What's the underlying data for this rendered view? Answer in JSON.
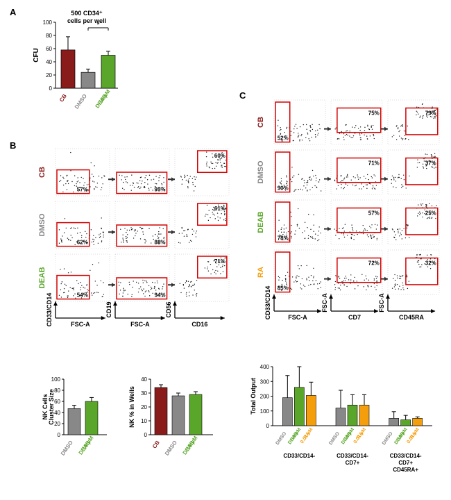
{
  "colors": {
    "cb": "#8a1b1b",
    "dmso": "#888888",
    "deab": "#5aa62a",
    "ra": "#f59e0b",
    "gate": "#d40000",
    "arrow_dark": "#333333",
    "dot": "#1a1a1a",
    "grid": "#e6e6e6"
  },
  "panelA": {
    "title": "500 CD34⁺\ncells per well",
    "ylabel": "CFU",
    "ylim": [
      0,
      100
    ],
    "ytick_step": 20,
    "bars": [
      {
        "label": "CB",
        "value": 58,
        "err": 20,
        "color": "#8a1b1b"
      },
      {
        "label": "DMSO",
        "value": 24,
        "err": 5,
        "color": "#888888"
      },
      {
        "label": "DEAB\n10 µM",
        "value": 50,
        "err": 6,
        "color": "#5aa62a"
      }
    ],
    "sig": {
      "from": 1,
      "to": 2,
      "label": "*"
    }
  },
  "panelB": {
    "rows": [
      {
        "name": "CB",
        "color": "#8a1b1b",
        "gates": [
          {
            "pct": "57%",
            "pos": "bl"
          },
          {
            "pct": "95%",
            "pos": "bm"
          },
          {
            "pct": "60%",
            "pos": "tr"
          }
        ]
      },
      {
        "name": "DMSO",
        "color": "#888888",
        "gates": [
          {
            "pct": "62%",
            "pos": "bl"
          },
          {
            "pct": "88%",
            "pos": "bm"
          },
          {
            "pct": "61%",
            "pos": "tr"
          }
        ]
      },
      {
        "name": "DEAB",
        "color": "#5aa62a",
        "gates": [
          {
            "pct": "54%",
            "pos": "bl"
          },
          {
            "pct": "94%",
            "pos": "bm"
          },
          {
            "pct": "71%",
            "pos": "tr"
          }
        ]
      }
    ],
    "x_axes": [
      "FSC-A",
      "FSC-A",
      "CD16"
    ],
    "y_axes": [
      "CD33/CD14",
      "CD19",
      "CD56"
    ],
    "bar_left": {
      "ylabel": "NK Cells\nCluster Size",
      "ylim": [
        0,
        100
      ],
      "ytick_step": 20,
      "bars": [
        {
          "label": "DMSO",
          "value": 47,
          "err": 6,
          "color": "#888888"
        },
        {
          "label": "DEAB\n10 µM",
          "value": 60,
          "err": 7,
          "color": "#5aa62a"
        }
      ]
    },
    "bar_right": {
      "ylabel": "NK % in Wells",
      "ylim": [
        0,
        40
      ],
      "ytick_step": 10,
      "bars": [
        {
          "label": "CB",
          "value": 34,
          "err": 2,
          "color": "#8a1b1b"
        },
        {
          "label": "DMSO",
          "value": 28,
          "err": 2,
          "color": "#888888"
        },
        {
          "label": "DEAB\n10 µM",
          "value": 29,
          "err": 2,
          "color": "#5aa62a"
        }
      ]
    }
  },
  "panelC": {
    "rows": [
      {
        "name": "CB",
        "color": "#8a1b1b",
        "gates": [
          {
            "pct": "52%",
            "pos": "bm"
          },
          {
            "pct": "75%",
            "pos": "tm"
          },
          {
            "pct": "79%",
            "pos": "tr"
          }
        ]
      },
      {
        "name": "DMSO",
        "color": "#888888",
        "gates": [
          {
            "pct": "90%",
            "pos": "bm"
          },
          {
            "pct": "71%",
            "pos": "tm"
          },
          {
            "pct": "37%",
            "pos": "tr"
          }
        ]
      },
      {
        "name": "DEAB",
        "color": "#5aa62a",
        "gates": [
          {
            "pct": "78%",
            "pos": "bm"
          },
          {
            "pct": "57%",
            "pos": "tm"
          },
          {
            "pct": "25%",
            "pos": "tr"
          }
        ]
      },
      {
        "name": "RA",
        "color": "#f59e0b",
        "gates": [
          {
            "pct": "85%",
            "pos": "bm"
          },
          {
            "pct": "72%",
            "pos": "tm"
          },
          {
            "pct": "32%",
            "pos": "tr"
          }
        ]
      }
    ],
    "x_axes": [
      "FSC-A",
      "CD7",
      "CD45RA"
    ],
    "y_axes": [
      "CD33/CD14",
      "FSC-A",
      "FSC-A"
    ],
    "bar": {
      "ylabel": "Total Output",
      "ylim": [
        0,
        400
      ],
      "ytick_step": 100,
      "groups": [
        "CD33/CD14-",
        "CD33/CD14-\nCD7+",
        "CD33/CD14-\nCD7+\nCD45RA+"
      ],
      "series": [
        {
          "label": "DMSO",
          "color": "#888888",
          "values": [
            190,
            120,
            50
          ],
          "errs": [
            150,
            120,
            45
          ]
        },
        {
          "label": "DEAB\n10 µM",
          "color": "#5aa62a",
          "values": [
            260,
            140,
            40
          ],
          "errs": [
            140,
            70,
            30
          ]
        },
        {
          "label": "RA\n0.01 µM",
          "color": "#f59e0b",
          "values": [
            205,
            140,
            50
          ],
          "errs": [
            90,
            70,
            10
          ]
        }
      ]
    }
  }
}
